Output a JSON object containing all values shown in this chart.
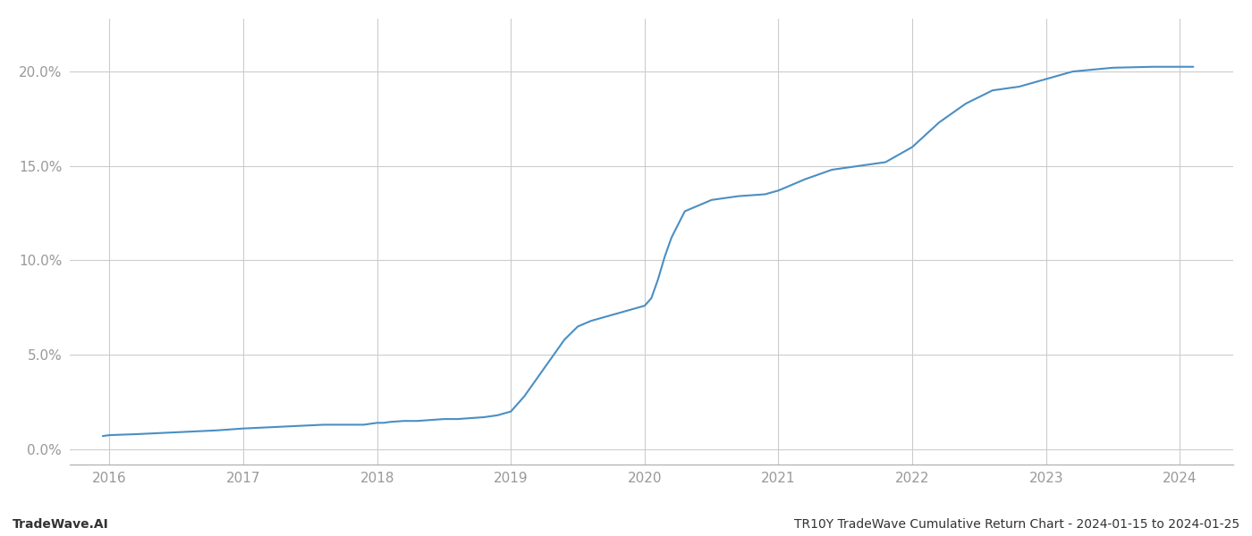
{
  "title": "TR10Y TradeWave Cumulative Return Chart - 2024-01-15 to 2024-01-25",
  "watermark": "TradeWave.AI",
  "line_color": "#4a8fc4",
  "line_width": 1.5,
  "background_color": "#ffffff",
  "grid_color": "#cccccc",
  "x_years": [
    2016,
    2017,
    2018,
    2019,
    2020,
    2021,
    2022,
    2023,
    2024
  ],
  "x_data": [
    2015.95,
    2016.0,
    2016.2,
    2016.5,
    2016.8,
    2017.0,
    2017.3,
    2017.6,
    2017.9,
    2018.0,
    2018.05,
    2018.1,
    2018.2,
    2018.3,
    2018.5,
    2018.6,
    2018.7,
    2018.8,
    2018.85,
    2018.9,
    2019.0,
    2019.1,
    2019.2,
    2019.3,
    2019.4,
    2019.5,
    2019.6,
    2019.7,
    2019.8,
    2019.9,
    2019.95,
    2020.0,
    2020.05,
    2020.1,
    2020.15,
    2020.2,
    2020.3,
    2020.5,
    2020.7,
    2020.9,
    2021.0,
    2021.1,
    2021.2,
    2021.4,
    2021.6,
    2021.8,
    2022.0,
    2022.2,
    2022.4,
    2022.6,
    2022.8,
    2023.0,
    2023.1,
    2023.2,
    2023.5,
    2023.8,
    2024.0,
    2024.1
  ],
  "y_data": [
    0.007,
    0.0075,
    0.008,
    0.009,
    0.01,
    0.011,
    0.012,
    0.013,
    0.013,
    0.014,
    0.014,
    0.0145,
    0.015,
    0.015,
    0.016,
    0.016,
    0.0165,
    0.017,
    0.0175,
    0.018,
    0.02,
    0.028,
    0.038,
    0.048,
    0.058,
    0.065,
    0.068,
    0.07,
    0.072,
    0.074,
    0.075,
    0.076,
    0.08,
    0.09,
    0.102,
    0.112,
    0.126,
    0.132,
    0.134,
    0.135,
    0.137,
    0.14,
    0.143,
    0.148,
    0.15,
    0.152,
    0.16,
    0.173,
    0.183,
    0.19,
    0.192,
    0.196,
    0.198,
    0.2,
    0.202,
    0.2025,
    0.2025,
    0.2025
  ],
  "yticks": [
    0.0,
    0.05,
    0.1,
    0.15,
    0.2
  ],
  "ytick_labels": [
    "0.0%",
    "5.0%",
    "10.0%",
    "15.0%",
    "20.0%"
  ],
  "xlim": [
    2015.7,
    2024.4
  ],
  "ylim": [
    -0.008,
    0.228
  ],
  "tick_color": "#999999",
  "tick_fontsize": 11,
  "footer_fontsize": 10,
  "footer_color": "#333333"
}
